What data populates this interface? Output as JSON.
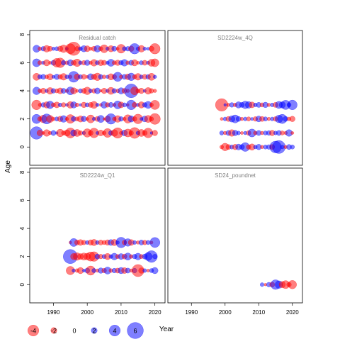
{
  "chart_data": {
    "type": "scatter",
    "kind": "bubble-residuals",
    "xlabel": "Year",
    "ylabel": "Age",
    "xticks": [
      1990,
      2000,
      2010,
      2020
    ],
    "yticks": [
      0,
      2,
      4,
      6,
      8
    ],
    "xlim": [
      1983,
      2023
    ],
    "ylim": [
      -1.3,
      8.3
    ],
    "colors": {
      "positive": "#0000FF",
      "negative": "#FF0000",
      "frame": "#000000",
      "panel_title": "#808080"
    },
    "legend": {
      "position": "bottom-left",
      "values": [
        -4,
        -2,
        0,
        2,
        4,
        6
      ],
      "labels": [
        "-4",
        "-2",
        "0",
        "2",
        "4",
        "6"
      ]
    },
    "panels": [
      {
        "title": "Residual catch",
        "years": [
          1985,
          2020
        ],
        "ages": [
          1,
          2,
          3,
          4,
          5,
          6,
          7
        ],
        "residuals": [
          [
            2.7,
            -1.1,
            -0.4,
            -1.3,
            -0.5,
            0.9,
            0.3,
            -1.5,
            -0.7,
            -1.2,
            -2.1,
            1.2,
            -1.4,
            -0.8,
            0.5,
            -1.7,
            -0.9,
            -2.0,
            0.4,
            -1.1,
            -0.6,
            -1.8,
            0.8,
            -1.3,
            -2.2,
            -0.5,
            1.1,
            -1.6,
            -0.8,
            -2.3,
            0.6,
            -1.4,
            -0.9,
            -2.0,
            0.3,
            -1.0
          ],
          [
            1.9,
            -0.8,
            -1.5,
            2.1,
            -1.4,
            -0.6,
            0.7,
            -1.0,
            1.3,
            -0.5,
            -1.8,
            0.9,
            -0.7,
            -1.2,
            1.0,
            -0.4,
            -1.6,
            0.5,
            -0.9,
            1.4,
            -0.3,
            -1.1,
            2.2,
            -0.6,
            -1.3,
            0.8,
            -0.5,
            -1.7,
            1.2,
            -0.8,
            -2.0,
            0.4,
            1.1,
            -1.4,
            -0.7,
            -2.3
          ],
          [
            -2.0,
            -0.5,
            0.8,
            -1.2,
            1.5,
            -0.7,
            -1.1,
            0.6,
            -0.8,
            0.4,
            -1.3,
            1.2,
            -0.6,
            0.3,
            -1.0,
            0.7,
            -0.9,
            -1.4,
            0.5,
            -0.4,
            1.3,
            -0.8,
            0.9,
            -0.5,
            1.6,
            -1.1,
            0.7,
            -0.3,
            2.0,
            -0.9,
            0.5,
            -1.2,
            0.8,
            1.4,
            -0.6,
            -1.9
          ],
          [
            1.5,
            -0.6,
            -1.0,
            0.5,
            -1.3,
            0.8,
            -0.7,
            -1.1,
            0.9,
            -0.5,
            1.6,
            -1.2,
            -0.4,
            0.7,
            -0.9,
            -1.5,
            0.6,
            -0.8,
            1.1,
            -0.3,
            -1.0,
            0.5,
            -1.4,
            0.8,
            -0.6,
            1.2,
            -0.9,
            -0.5,
            3.0,
            -1.6,
            -0.7,
            -1.0,
            0.4,
            -1.3,
            -0.8,
            -0.5
          ],
          [
            -1.4,
            0.7,
            0.9,
            -0.6,
            -1.2,
            0.4,
            1.0,
            -0.8,
            -1.3,
            0.6,
            -0.5,
            2.3,
            -1.1,
            0.7,
            -0.9,
            -0.4,
            1.2,
            -1.0,
            -1.5,
            0.8,
            -0.6,
            0.5,
            -1.2,
            -0.8,
            1.9,
            -0.5,
            0.9,
            -1.1,
            1.5,
            -0.7,
            -1.3,
            0.6,
            -0.9,
            0.8,
            -1.4,
            0.5
          ],
          [
            1.6,
            -0.7,
            0.5,
            -1.2,
            -0.4,
            0.9,
            -1.8,
            -2.0,
            0.8,
            -0.6,
            1.2,
            -0.9,
            -1.5,
            0.6,
            -0.8,
            1.0,
            -0.5,
            -1.3,
            0.7,
            -1.1,
            -0.9,
            0.5,
            1.4,
            -0.7,
            -1.0,
            0.8,
            1.3,
            -0.6,
            0.9,
            -1.2,
            -0.4,
            0.7,
            -0.9,
            0.5,
            -1.4,
            -1.6
          ],
          [
            1.4,
            -0.6,
            0.8,
            -1.3,
            -0.9,
            0.5,
            0.7,
            -1.0,
            -1.5,
            0.4,
            -2.1,
            -2.9,
            -0.8,
            0.6,
            1.2,
            -1.1,
            -0.5,
            -0.9,
            1.3,
            -0.7,
            -1.6,
            0.5,
            -1.2,
            0.9,
            -0.4,
            -1.8,
            0.7,
            0.8,
            -1.0,
            2.2,
            0.6,
            -1.3,
            0.5,
            0.4,
            -0.9,
            -2.2
          ]
        ]
      },
      {
        "title": "SD2224w_4Q",
        "years": [
          1999,
          2020
        ],
        "ages": [
          0,
          1,
          2,
          3
        ],
        "residuals": [
          [
            -0.6,
            -1.5,
            -0.9,
            0.7,
            -1.0,
            1.1,
            0.9,
            1.8,
            -0.8,
            -1.2,
            0.6,
            1.0,
            -0.5,
            0.7,
            0.8,
            -0.9,
            2.5,
            2.8,
            0.6,
            -0.5,
            0.9,
            0.7
          ],
          [
            0.7,
            -0.5,
            0.9,
            -1.3,
            1.0,
            0.6,
            -0.4,
            0.5,
            -0.8,
            1.6,
            -0.6,
            0.9,
            -0.5,
            0.7,
            0.8,
            -1.0,
            0.6,
            0.9,
            -0.7,
            -0.5,
            1.3,
            -0.4
          ],
          [
            -0.4,
            0.6,
            -0.9,
            1.2,
            1.6,
            0.9,
            -0.5,
            0.6,
            -0.7,
            0.4,
            -0.8,
            1.1,
            -0.9,
            0.7,
            -0.5,
            0.6,
            -0.8,
            1.5,
            1.9,
            0.9,
            -0.6,
            -1.0
          ],
          [
            -2.7,
            0.3,
            -0.5,
            0.8,
            -0.6,
            1.2,
            0.9,
            1.5,
            1.3,
            -1.1,
            0.6,
            0.9,
            -0.7,
            1.0,
            -0.5,
            0.6,
            -0.9,
            1.4,
            1.2,
            1.9,
            0.7,
            2.0
          ]
        ]
      },
      {
        "title": "SD2224w_Q1",
        "years": [
          1995,
          2020
        ],
        "ages": [
          1,
          2,
          3
        ],
        "residuals": [
          [
            -1.7,
            0.5,
            -0.6,
            -1.2,
            0.4,
            0.9,
            -1.9,
            0.7,
            -0.5,
            1.0,
            -0.8,
            1.4,
            -0.6,
            0.8,
            -0.9,
            1.2,
            -1.1,
            0.9,
            -0.5,
            0.8,
            -2.6,
            -1.0,
            0.6,
            -0.4,
            0.7,
            1.2
          ],
          [
            3.1,
            -1.2,
            -1.5,
            -1.1,
            -1.4,
            -1.3,
            -1.9,
            -2.0,
            0.9,
            -0.8,
            0.7,
            -1.2,
            0.6,
            1.3,
            -0.7,
            1.1,
            -0.9,
            1.4,
            -0.6,
            0.8,
            1.3,
            -0.7,
            0.9,
            1.6,
            2.5,
            0.8
          ],
          [
            -0.3,
            1.6,
            -0.9,
            -1.1,
            -0.8,
            0.6,
            -1.0,
            -1.2,
            0.6,
            -0.9,
            -0.7,
            -1.0,
            1.1,
            -1.2,
            0.5,
            2.2,
            -0.8,
            1.5,
            -1.1,
            0.6,
            -0.5,
            0.9,
            -0.8,
            0.7,
            -0.4,
            2.1
          ]
        ]
      },
      {
        "title": "SD24_poundnet",
        "years": [
          2011,
          2020
        ],
        "ages": [
          0
        ],
        "residuals": [
          [
            0.6,
            -0.3,
            0.8,
            -0.9,
            2.0,
            1.5,
            -1.2,
            -1.6,
            -0.8,
            -1.7
          ]
        ]
      }
    ]
  }
}
